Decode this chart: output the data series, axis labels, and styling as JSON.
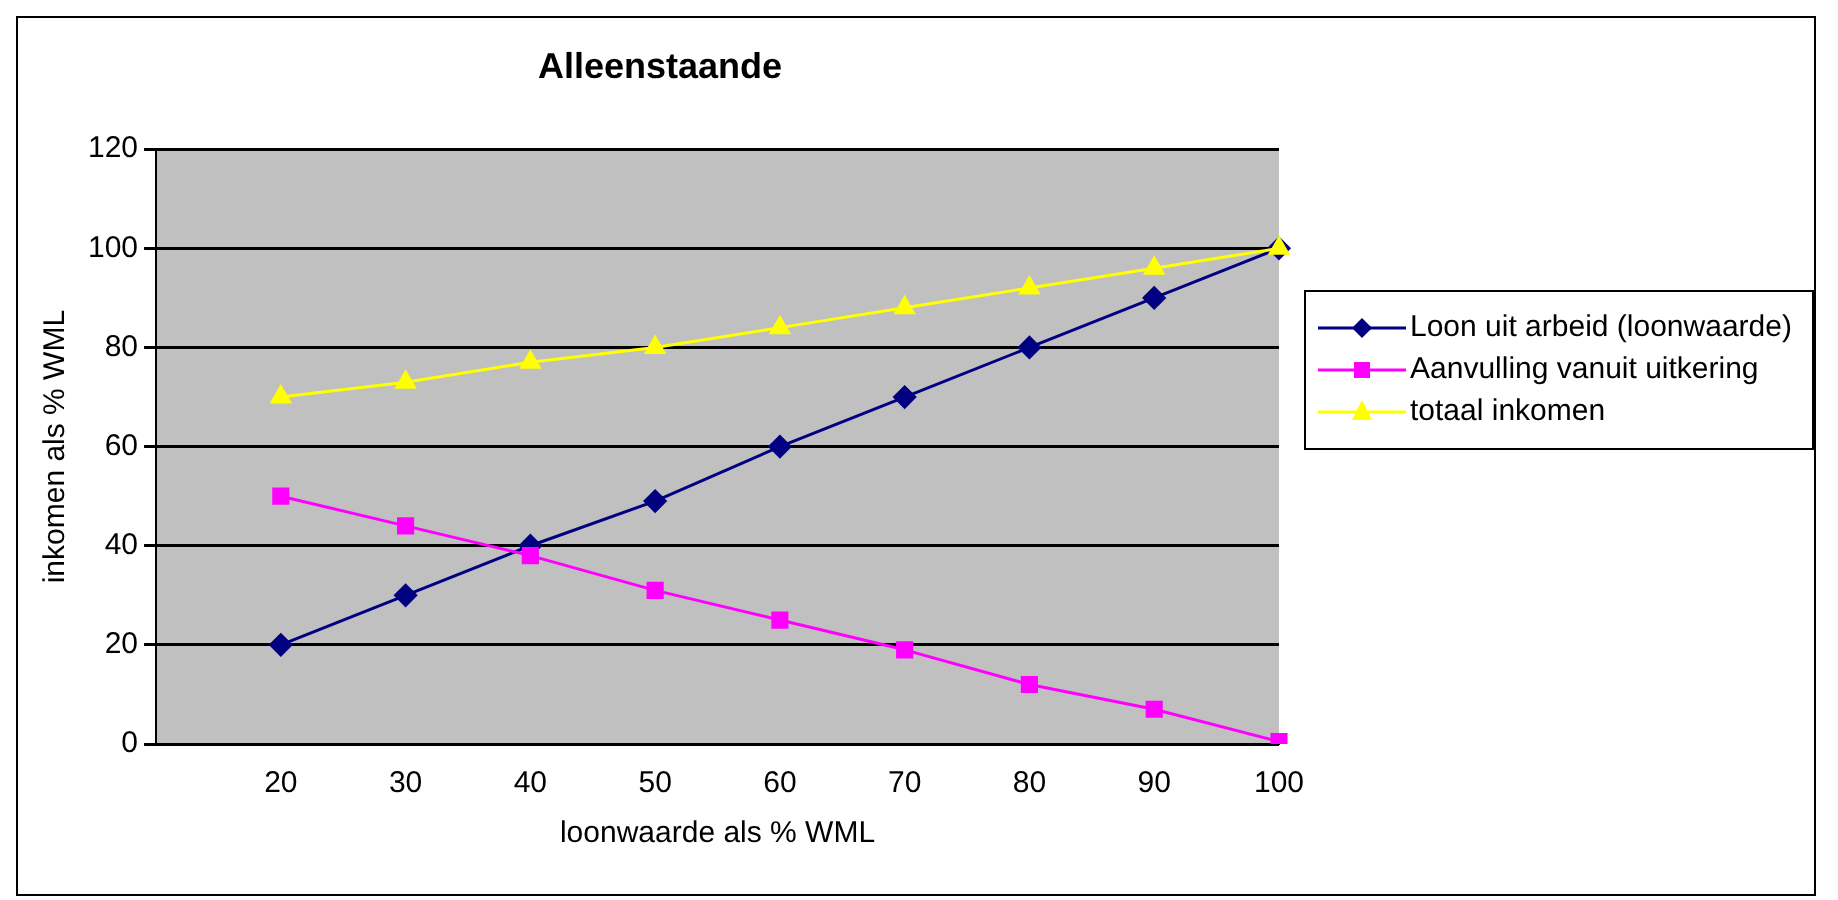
{
  "chart_data": {
    "type": "line",
    "title": "Alleenstaande",
    "xlabel": "loonwaarde als % WML",
    "ylabel": "inkomen als % WML",
    "categories": [
      null,
      "20",
      "30",
      "40",
      "50",
      "60",
      "70",
      "80",
      "90",
      "100"
    ],
    "series": [
      {
        "name": "Loon uit arbeid (loonwaarde)",
        "color": "#000080",
        "marker": "diamond",
        "values": [
          null,
          20,
          30,
          40,
          49,
          60,
          70,
          80,
          90,
          100
        ]
      },
      {
        "name": "Aanvulling vanuit uitkering",
        "color": "#ff00ff",
        "marker": "square",
        "values": [
          null,
          50,
          44,
          38,
          31,
          25,
          19,
          12,
          7,
          0.5
        ]
      },
      {
        "name": "totaal inkomen",
        "color": "#ffff00",
        "marker": "triangle",
        "values": [
          null,
          70,
          73,
          77,
          80,
          84,
          88,
          92,
          96,
          100
        ]
      }
    ],
    "ylim": [
      0,
      120
    ],
    "yticks": [
      0,
      20,
      40,
      60,
      80,
      100,
      120
    ],
    "grid": "y",
    "legend": "right",
    "line_style": "solid"
  }
}
